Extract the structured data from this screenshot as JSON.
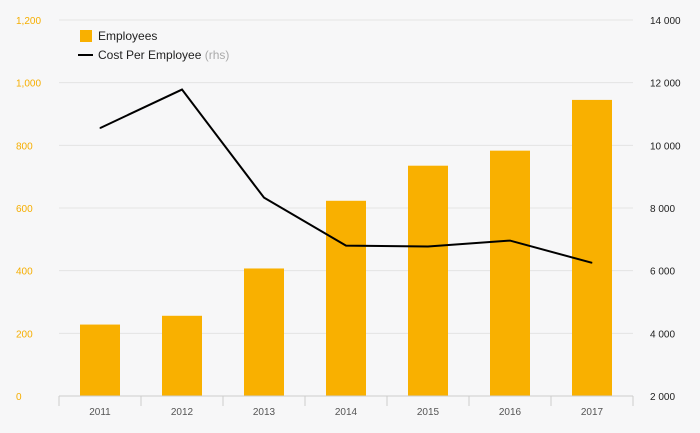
{
  "chart_data": {
    "type": "bar",
    "categories": [
      "2011",
      "2012",
      "2013",
      "2014",
      "2015",
      "2016",
      "2017"
    ],
    "series": [
      {
        "name": "Employees",
        "type": "bar",
        "axis": "left",
        "color": "#f9b000",
        "values": [
          228,
          256,
          407,
          623,
          735,
          783,
          945
        ]
      },
      {
        "name": "Cost Per Employee",
        "legend_suffix": "(rhs)",
        "type": "line",
        "axis": "right",
        "color": "#000000",
        "values": [
          10550,
          11780,
          8330,
          6800,
          6770,
          6960,
          6250
        ]
      }
    ],
    "left_axis": {
      "range": [
        0,
        1200
      ],
      "ticks": [
        0,
        200,
        400,
        600,
        800,
        1000,
        1200
      ],
      "tick_labels": [
        "0",
        "200",
        "400",
        "600",
        "800",
        "1,000",
        "1,200"
      ],
      "color": "#f6ae00"
    },
    "right_axis": {
      "range": [
        2000,
        14000
      ],
      "ticks": [
        2000,
        4000,
        6000,
        8000,
        10000,
        12000,
        14000
      ],
      "tick_labels": [
        "2 000",
        "4 000",
        "6 000",
        "8 000",
        "10 000",
        "12 000",
        "14 000"
      ],
      "color": "#222222"
    },
    "grid": true,
    "legend_position": "top-left",
    "title": "",
    "xlabel": "",
    "ylabel": ""
  }
}
